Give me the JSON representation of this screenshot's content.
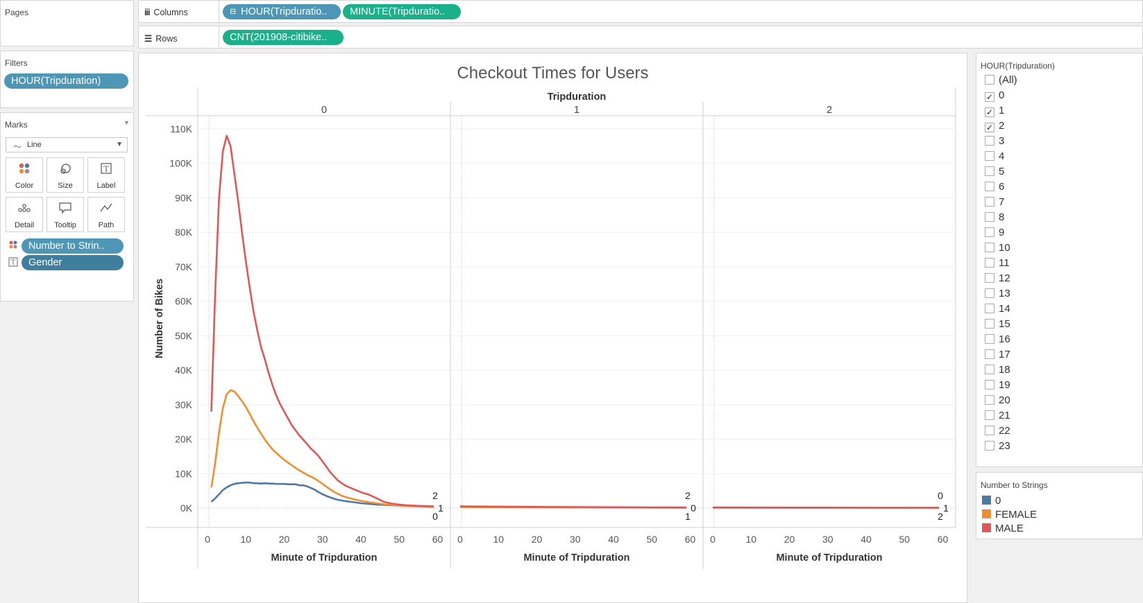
{
  "pages": {
    "title": "Pages"
  },
  "filters": {
    "title": "Filters",
    "pill": "HOUR(Tripduration)"
  },
  "marks": {
    "title": "Marks",
    "type": "Line",
    "buttons": [
      "Color",
      "Size",
      "Label",
      "Detail",
      "Tooltip",
      "Path"
    ],
    "fields": [
      "Number to Strin..",
      "Gender"
    ]
  },
  "columns_shelf": {
    "label": "Columns",
    "pills": [
      "HOUR(Tripduratio..",
      "MINUTE(Tripduratio.."
    ]
  },
  "rows_shelf": {
    "label": "Rows",
    "pills": [
      "CNT(201908-citibike.."
    ]
  },
  "hour_filter": {
    "title": "HOUR(Tripduration)",
    "items": [
      {
        "label": "(All)",
        "checked": false
      },
      {
        "label": "0",
        "checked": true
      },
      {
        "label": "1",
        "checked": true
      },
      {
        "label": "2",
        "checked": true
      },
      {
        "label": "3",
        "checked": false
      },
      {
        "label": "4",
        "checked": false
      },
      {
        "label": "5",
        "checked": false
      },
      {
        "label": "6",
        "checked": false
      },
      {
        "label": "7",
        "checked": false
      },
      {
        "label": "8",
        "checked": false
      },
      {
        "label": "9",
        "checked": false
      },
      {
        "label": "10",
        "checked": false
      },
      {
        "label": "11",
        "checked": false
      },
      {
        "label": "12",
        "checked": false
      },
      {
        "label": "13",
        "checked": false
      },
      {
        "label": "14",
        "checked": false
      },
      {
        "label": "15",
        "checked": false
      },
      {
        "label": "16",
        "checked": false
      },
      {
        "label": "17",
        "checked": false
      },
      {
        "label": "18",
        "checked": false
      },
      {
        "label": "19",
        "checked": false
      },
      {
        "label": "20",
        "checked": false
      },
      {
        "label": "21",
        "checked": false
      },
      {
        "label": "22",
        "checked": false
      },
      {
        "label": "23",
        "checked": false
      }
    ]
  },
  "legend": {
    "title": "Number to Strings",
    "items": [
      {
        "label": "0",
        "color": "#4e79a7"
      },
      {
        "label": "FEMALE",
        "color": "#f28e2b"
      },
      {
        "label": "MALE",
        "color": "#e15759"
      }
    ]
  },
  "chart_data": {
    "type": "line",
    "title": "Checkout Times for Users",
    "column_header": "Tripduration",
    "panels": [
      "0",
      "1",
      "2"
    ],
    "xlabel": "Minute of Tripduration",
    "ylabel": "Number of Bikes",
    "xlim": [
      0,
      60
    ],
    "ylim": [
      0,
      110000
    ],
    "xticks": [
      "0",
      "10",
      "20",
      "30",
      "40",
      "50",
      "60"
    ],
    "yticks": [
      "0K",
      "10K",
      "20K",
      "30K",
      "40K",
      "50K",
      "60K",
      "70K",
      "80K",
      "90K",
      "100K",
      "110K"
    ],
    "series": [
      {
        "label": "0",
        "color": "#4e79a7",
        "panel_values": [
          [
            [
              1,
              1800
            ],
            [
              2,
              2800
            ],
            [
              3,
              4000
            ],
            [
              4,
              5200
            ],
            [
              5,
              6000
            ],
            [
              6,
              6600
            ],
            [
              7,
              7000
            ],
            [
              8,
              7200
            ],
            [
              9,
              7300
            ],
            [
              10,
              7400
            ],
            [
              11,
              7400
            ],
            [
              12,
              7200
            ],
            [
              13,
              7200
            ],
            [
              14,
              7100
            ],
            [
              15,
              7200
            ],
            [
              16,
              7100
            ],
            [
              17,
              7100
            ],
            [
              18,
              7000
            ],
            [
              19,
              7000
            ],
            [
              20,
              7000
            ],
            [
              21,
              6900
            ],
            [
              22,
              6900
            ],
            [
              23,
              6900
            ],
            [
              24,
              6600
            ],
            [
              25,
              6600
            ],
            [
              26,
              6300
            ],
            [
              27,
              5800
            ],
            [
              28,
              5300
            ],
            [
              29,
              4600
            ],
            [
              30,
              4000
            ],
            [
              31,
              3500
            ],
            [
              32,
              3100
            ],
            [
              33,
              2700
            ],
            [
              34,
              2400
            ],
            [
              35,
              2200
            ],
            [
              36,
              2000
            ],
            [
              38,
              1700
            ],
            [
              40,
              1400
            ],
            [
              42,
              1200
            ],
            [
              44,
              1000
            ],
            [
              46,
              900
            ],
            [
              48,
              800
            ],
            [
              50,
              700
            ],
            [
              52,
              600
            ],
            [
              54,
              500
            ],
            [
              56,
              450
            ],
            [
              58,
              400
            ],
            [
              59,
              350
            ]
          ],
          [
            [
              0,
              350
            ],
            [
              10,
              300
            ],
            [
              20,
              250
            ],
            [
              30,
              220
            ],
            [
              40,
              180
            ],
            [
              50,
              150
            ],
            [
              59,
              120
            ]
          ],
          [
            [
              0,
              120
            ],
            [
              10,
              110
            ],
            [
              20,
              100
            ],
            [
              30,
              90
            ],
            [
              40,
              80
            ],
            [
              50,
              70
            ],
            [
              59,
              60
            ]
          ]
        ],
        "end_labels": [
          "0",
          "1",
          "2"
        ]
      },
      {
        "label": "FEMALE",
        "color": "#f28e2b",
        "panel_values": [
          [
            [
              1,
              6000
            ],
            [
              2,
              13000
            ],
            [
              3,
              22000
            ],
            [
              4,
              29000
            ],
            [
              5,
              33000
            ],
            [
              6,
              34200
            ],
            [
              7,
              33800
            ],
            [
              8,
              32500
            ],
            [
              9,
              31000
            ],
            [
              10,
              29300
            ],
            [
              11,
              27300
            ],
            [
              12,
              25200
            ],
            [
              13,
              23300
            ],
            [
              14,
              21500
            ],
            [
              15,
              19800
            ],
            [
              16,
              18300
            ],
            [
              17,
              17000
            ],
            [
              18,
              15900
            ],
            [
              19,
              14900
            ],
            [
              20,
              14000
            ],
            [
              21,
              13200
            ],
            [
              22,
              12400
            ],
            [
              23,
              11600
            ],
            [
              24,
              10900
            ],
            [
              25,
              10300
            ],
            [
              26,
              9600
            ],
            [
              27,
              9100
            ],
            [
              28,
              8500
            ],
            [
              29,
              7800
            ],
            [
              30,
              7000
            ],
            [
              31,
              6200
            ],
            [
              32,
              5400
            ],
            [
              33,
              4700
            ],
            [
              34,
              4100
            ],
            [
              35,
              3600
            ],
            [
              36,
              3200
            ],
            [
              38,
              2600
            ],
            [
              40,
              2100
            ],
            [
              42,
              1700
            ],
            [
              44,
              1400
            ],
            [
              46,
              1100
            ],
            [
              48,
              900
            ],
            [
              50,
              750
            ],
            [
              52,
              600
            ],
            [
              54,
              500
            ],
            [
              56,
              400
            ],
            [
              58,
              350
            ],
            [
              59,
              300
            ]
          ],
          [
            [
              0,
              300
            ],
            [
              10,
              250
            ],
            [
              20,
              200
            ],
            [
              30,
              170
            ],
            [
              40,
              140
            ],
            [
              50,
              110
            ],
            [
              59,
              90
            ]
          ],
          [
            [
              0,
              90
            ],
            [
              10,
              80
            ],
            [
              20,
              70
            ],
            [
              30,
              60
            ],
            [
              40,
              50
            ],
            [
              50,
              40
            ],
            [
              59,
              30
            ]
          ]
        ],
        "end_labels": [
          "1",
          "0",
          "1"
        ]
      },
      {
        "label": "MALE",
        "color": "#e15759",
        "panel_values": [
          [
            [
              1,
              28000
            ],
            [
              2,
              62000
            ],
            [
              3,
              90000
            ],
            [
              4,
              103500
            ],
            [
              5,
              108000
            ],
            [
              6,
              105000
            ],
            [
              7,
              97000
            ],
            [
              8,
              89000
            ],
            [
              9,
              80000
            ],
            [
              10,
              71500
            ],
            [
              11,
              64000
            ],
            [
              12,
              57000
            ],
            [
              13,
              51500
            ],
            [
              14,
              46500
            ],
            [
              15,
              43000
            ],
            [
              16,
              39000
            ],
            [
              17,
              35500
            ],
            [
              18,
              32500
            ],
            [
              19,
              30000
            ],
            [
              20,
              28000
            ],
            [
              21,
              26000
            ],
            [
              22,
              24000
            ],
            [
              23,
              22500
            ],
            [
              24,
              21000
            ],
            [
              25,
              19800
            ],
            [
              26,
              18500
            ],
            [
              27,
              17200
            ],
            [
              28,
              16200
            ],
            [
              29,
              15000
            ],
            [
              30,
              13500
            ],
            [
              31,
              12000
            ],
            [
              32,
              10400
            ],
            [
              33,
              9200
            ],
            [
              34,
              8000
            ],
            [
              35,
              7200
            ],
            [
              36,
              6500
            ],
            [
              38,
              5500
            ],
            [
              40,
              4600
            ],
            [
              42,
              3900
            ],
            [
              44,
              2900
            ],
            [
              46,
              1800
            ],
            [
              48,
              1300
            ],
            [
              50,
              1000
            ],
            [
              52,
              800
            ],
            [
              54,
              700
            ],
            [
              56,
              600
            ],
            [
              58,
              550
            ],
            [
              59,
              500
            ]
          ],
          [
            [
              0,
              500
            ],
            [
              10,
              420
            ],
            [
              20,
              350
            ],
            [
              30,
              300
            ],
            [
              40,
              250
            ],
            [
              50,
              200
            ],
            [
              59,
              180
            ]
          ],
          [
            [
              0,
              180
            ],
            [
              10,
              160
            ],
            [
              20,
              140
            ],
            [
              30,
              120
            ],
            [
              40,
              100
            ],
            [
              50,
              90
            ],
            [
              59,
              80
            ]
          ]
        ],
        "end_labels": [
          "2",
          "2",
          "0"
        ]
      }
    ]
  }
}
